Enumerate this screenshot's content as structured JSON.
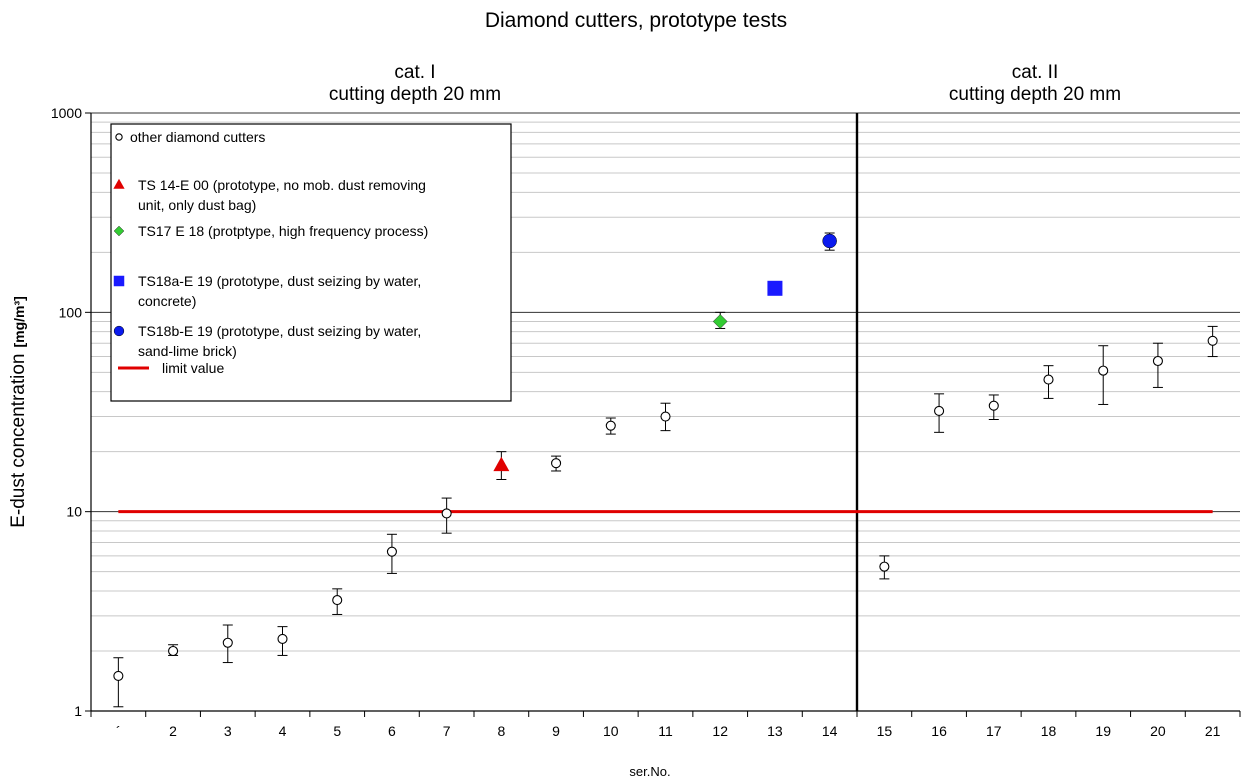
{
  "chart_data": {
    "type": "scatter",
    "title": "Diamond cutters, prototype tests",
    "xlabel": "ser.No.",
    "ylabel": "E-dust concentration",
    "ylabel_unit": "[mg/m³]",
    "y_scale": "log",
    "ylim": [
      1,
      1000
    ],
    "xlim": [
      0.5,
      21.5
    ],
    "y_ticks": [
      "1",
      "10",
      "100",
      "1000"
    ],
    "x_ticks": [
      "´",
      "2",
      "3",
      "4",
      "5",
      "6",
      "7",
      "8",
      "9",
      "10",
      "11",
      "12",
      "13",
      "14",
      "15",
      "16",
      "17",
      "18",
      "19",
      "20",
      "21"
    ],
    "grid": "horizontal minor lines",
    "legend_position": "top-left",
    "regions": [
      {
        "line1": "cat. I",
        "line2": "cutting depth 20 mm",
        "x_from": 0.5,
        "x_to": 14.5
      },
      {
        "line1": "cat. II",
        "line2": "cutting depth 20 mm",
        "x_from": 14.5,
        "x_to": 21.5
      }
    ],
    "divider_x": 14.5,
    "limit_value": {
      "label": "limit value",
      "y": 10,
      "x_from": 1,
      "x_to": 21,
      "color": "#e00000"
    },
    "series": [
      {
        "name": "other diamond cutters",
        "marker": "open-circle",
        "color": "#000000",
        "points": [
          {
            "x": 1,
            "y": 1.5,
            "lo": 1.05,
            "hi": 1.85
          },
          {
            "x": 2,
            "y": 2.0,
            "lo": 1.9,
            "hi": 2.15
          },
          {
            "x": 3,
            "y": 2.2,
            "lo": 1.75,
            "hi": 2.7
          },
          {
            "x": 4,
            "y": 2.3,
            "lo": 1.9,
            "hi": 2.65
          },
          {
            "x": 5,
            "y": 3.6,
            "lo": 3.05,
            "hi": 4.1
          },
          {
            "x": 6,
            "y": 6.3,
            "lo": 4.9,
            "hi": 7.7
          },
          {
            "x": 7,
            "y": 9.8,
            "lo": 7.8,
            "hi": 11.7
          },
          {
            "x": 9,
            "y": 17.5,
            "lo": 16.0,
            "hi": 19.0
          },
          {
            "x": 10,
            "y": 27,
            "lo": 24.5,
            "hi": 29.5
          },
          {
            "x": 11,
            "y": 30,
            "lo": 25.5,
            "hi": 35
          },
          {
            "x": 15,
            "y": 5.3,
            "lo": 4.6,
            "hi": 6.0
          },
          {
            "x": 16,
            "y": 32,
            "lo": 25,
            "hi": 39
          },
          {
            "x": 17,
            "y": 34,
            "lo": 29,
            "hi": 38.5
          },
          {
            "x": 18,
            "y": 46,
            "lo": 37,
            "hi": 54
          },
          {
            "x": 19,
            "y": 51,
            "lo": 34.5,
            "hi": 68
          },
          {
            "x": 20,
            "y": 57,
            "lo": 42,
            "hi": 70
          },
          {
            "x": 21,
            "y": 72,
            "lo": 60,
            "hi": 85
          }
        ]
      },
      {
        "name": "TS 14-E 00 (prototype, no mob. dust removing unit, only dust bag)",
        "marker": "triangle",
        "color": "#e00000",
        "points": [
          {
            "x": 8,
            "y": 17,
            "lo": 14.5,
            "hi": 20
          }
        ]
      },
      {
        "name": "TS17 E 18 (protptype, high frequency process)",
        "marker": "diamond",
        "color": "#33cc33",
        "points": [
          {
            "x": 12,
            "y": 90,
            "lo": 83,
            "hi": 100
          }
        ]
      },
      {
        "name": "TS18a-E 19 (prototype, dust seizing by water, concrete)",
        "marker": "square",
        "color": "#1a1aff",
        "points": [
          {
            "x": 13,
            "y": 132
          }
        ]
      },
      {
        "name": "TS18b-E 19 (prototype, dust seizing by water, sand-lime brick)",
        "marker": "filled-circle",
        "color": "#0a1aee",
        "points": [
          {
            "x": 14,
            "y": 228,
            "lo": 205,
            "hi": 250
          }
        ]
      }
    ],
    "legend": [
      {
        "marker": "open-circle",
        "color": "#000000",
        "lines": [
          "other diamond cutters"
        ]
      },
      {
        "marker": "triangle",
        "color": "#e00000",
        "lines": [
          "TS 14-E 00 (prototype, no mob. dust removing",
          "unit, only dust bag)"
        ]
      },
      {
        "marker": "diamond",
        "color": "#33cc33",
        "lines": [
          "TS17 E 18 (protptype, high frequency process)"
        ]
      },
      {
        "marker": "square",
        "color": "#1a1aff",
        "lines": [
          "TS18a-E 19 (prototype, dust seizing by water,",
          "concrete)"
        ]
      },
      {
        "marker": "filled-circle",
        "color": "#0a1aee",
        "lines": [
          "TS18b-E 19 (prototype, dust seizing by water,",
          "sand-lime brick)"
        ]
      },
      {
        "marker": "line",
        "color": "#e00000",
        "lines": [
          "limit value"
        ]
      }
    ]
  }
}
